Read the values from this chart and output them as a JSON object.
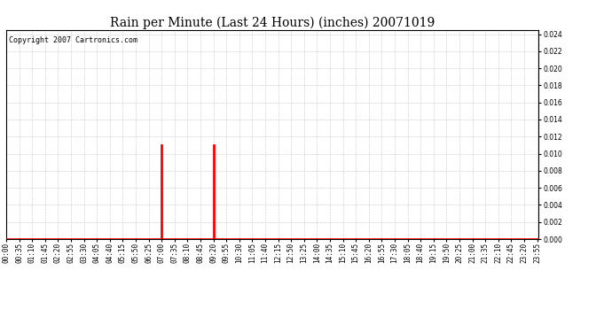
{
  "title": "Rain per Minute (Last 24 Hours) (inches) 20071019",
  "copyright_text": "Copyright 2007 Cartronics.com",
  "ylim": [
    0.0,
    0.0245
  ],
  "yticks": [
    0.0,
    0.002,
    0.004,
    0.006,
    0.008,
    0.01,
    0.012,
    0.014,
    0.016,
    0.018,
    0.02,
    0.022,
    0.024
  ],
  "bar_color": "#ff0000",
  "baseline_color": "#ff0000",
  "grid_color": "#c8c8c8",
  "bg_color": "#ffffff",
  "spike1_minute": 420,
  "spike1_value": 0.011,
  "spike2_minute": 560,
  "spike2_value": 0.011,
  "total_minutes": 1440,
  "title_fontsize": 10,
  "tick_fontsize": 5.5,
  "copyright_fontsize": 6,
  "fig_width": 6.9,
  "fig_height": 3.75
}
